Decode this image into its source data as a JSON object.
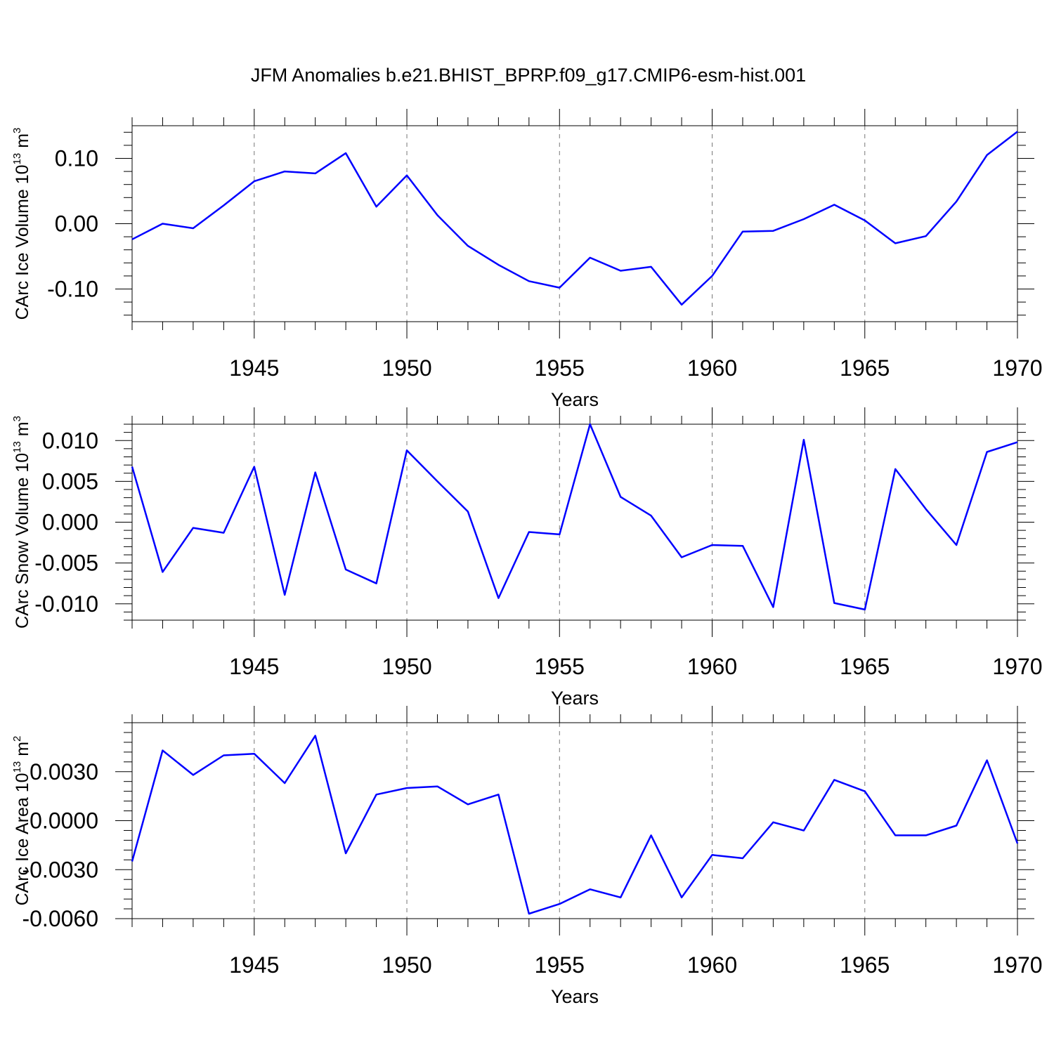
{
  "title": "JFM Anomalies b.e21.BHIST_BPRP.f09_g17.CMIP6-esm-hist.001",
  "chart_data": [
    {
      "type": "line",
      "title": "",
      "xlabel": "Years",
      "ylabel_prefix": "CArc Ice Volume 10",
      "ylabel_exp1": "13",
      "ylabel_unit": " m",
      "ylabel_exp2": "3",
      "xlim": [
        1941,
        1970
      ],
      "ylim": [
        -0.15,
        0.15
      ],
      "xticks": [
        1945,
        1950,
        1955,
        1960,
        1965,
        1970
      ],
      "xtick_labels": [
        "1945",
        "1950",
        "1955",
        "1960",
        "1965",
        "1970"
      ],
      "yticks": [
        -0.1,
        0.0,
        0.1
      ],
      "ytick_labels": [
        "-0.10",
        "0.00",
        "0.10"
      ],
      "ytick_minor_step": 0.02,
      "grid": "vertical dashed at major x ticks",
      "series": [
        {
          "name": "CArc Ice Volume",
          "color": "#0000ff",
          "x": [
            1941,
            1942,
            1943,
            1944,
            1945,
            1946,
            1947,
            1948,
            1949,
            1950,
            1951,
            1952,
            1953,
            1954,
            1955,
            1956,
            1957,
            1958,
            1959,
            1960,
            1961,
            1962,
            1963,
            1964,
            1965,
            1966,
            1967,
            1968,
            1969,
            1970
          ],
          "values": [
            -0.024,
            0.0,
            -0.007,
            0.028,
            0.065,
            0.08,
            0.077,
            0.108,
            0.026,
            0.074,
            0.013,
            -0.034,
            -0.063,
            -0.088,
            -0.098,
            -0.052,
            -0.072,
            -0.066,
            -0.124,
            -0.08,
            -0.012,
            -0.011,
            0.007,
            0.029,
            0.005,
            -0.03,
            -0.019,
            0.034,
            0.105,
            0.141
          ]
        }
      ]
    },
    {
      "type": "line",
      "title": "",
      "xlabel": "Years",
      "ylabel_prefix": "CArc Snow Volume 10",
      "ylabel_exp1": "13",
      "ylabel_unit": " m",
      "ylabel_exp2": "3",
      "xlim": [
        1941,
        1970
      ],
      "ylim": [
        -0.012,
        0.012
      ],
      "xticks": [
        1945,
        1950,
        1955,
        1960,
        1965,
        1970
      ],
      "xtick_labels": [
        "1945",
        "1950",
        "1955",
        "1960",
        "1965",
        "1970"
      ],
      "yticks": [
        -0.01,
        -0.005,
        0.0,
        0.005,
        0.01
      ],
      "ytick_labels": [
        "-0.010",
        "-0.005",
        "0.000",
        "0.005",
        "0.010"
      ],
      "ytick_minor_step": 0.001,
      "grid": "vertical dashed at major x ticks",
      "series": [
        {
          "name": "CArc Snow Volume",
          "color": "#0000ff",
          "x": [
            1941,
            1942,
            1943,
            1944,
            1945,
            1946,
            1947,
            1948,
            1949,
            1950,
            1951,
            1952,
            1953,
            1954,
            1955,
            1956,
            1957,
            1958,
            1959,
            1960,
            1961,
            1962,
            1963,
            1964,
            1965,
            1966,
            1967,
            1968,
            1969,
            1970
          ],
          "values": [
            0.0068,
            -0.0061,
            -0.0007,
            -0.0013,
            0.0068,
            -0.0089,
            0.0061,
            -0.0058,
            -0.0075,
            0.0088,
            0.005,
            0.0013,
            -0.0093,
            -0.0012,
            -0.0015,
            0.012,
            0.0031,
            0.0008,
            -0.0043,
            -0.0028,
            -0.0029,
            -0.0104,
            0.0101,
            -0.0099,
            -0.0107,
            0.0065,
            0.0016,
            -0.0028,
            0.0086,
            0.0098
          ]
        }
      ]
    },
    {
      "type": "line",
      "title": "",
      "xlabel": "Years",
      "ylabel_prefix": "CArc Ice Area 10",
      "ylabel_exp1": "13",
      "ylabel_unit": " m",
      "ylabel_exp2": "2",
      "xlim": [
        1941,
        1970
      ],
      "ylim": [
        -0.006,
        0.006
      ],
      "xticks": [
        1945,
        1950,
        1955,
        1960,
        1965,
        1970
      ],
      "xtick_labels": [
        "1945",
        "1950",
        "1955",
        "1960",
        "1965",
        "1970"
      ],
      "yticks": [
        -0.006,
        -0.003,
        0.0,
        0.003
      ],
      "ytick_labels": [
        "-0.0060",
        "-0.0030",
        "0.0000",
        "0.0030"
      ],
      "ytick_minor_step": 0.0006,
      "grid": "vertical dashed at major x ticks",
      "series": [
        {
          "name": "CArc Ice Area",
          "color": "#0000ff",
          "x": [
            1941,
            1942,
            1943,
            1944,
            1945,
            1946,
            1947,
            1948,
            1949,
            1950,
            1951,
            1952,
            1953,
            1954,
            1955,
            1956,
            1957,
            1958,
            1959,
            1960,
            1961,
            1962,
            1963,
            1964,
            1965,
            1966,
            1967,
            1968,
            1969,
            1970
          ],
          "values": [
            -0.0025,
            0.0043,
            0.0028,
            0.004,
            0.0041,
            0.0023,
            0.0052,
            -0.002,
            0.0016,
            0.002,
            0.0021,
            0.001,
            0.0016,
            -0.0057,
            -0.0051,
            -0.0042,
            -0.0047,
            -0.0009,
            -0.0047,
            -0.0021,
            -0.0023,
            -0.0001,
            -0.0006,
            0.0025,
            0.0018,
            -0.0009,
            -0.0009,
            -0.0003,
            0.0037,
            -0.0014
          ]
        }
      ]
    }
  ]
}
